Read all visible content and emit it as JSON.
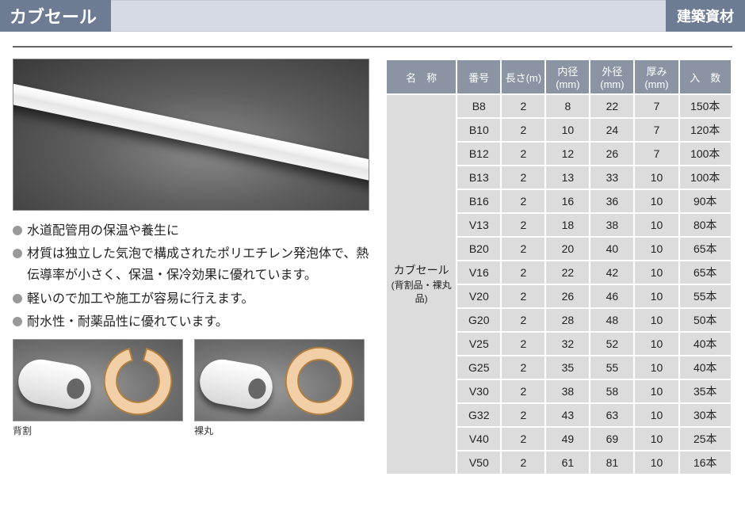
{
  "header": {
    "title": "カブセール",
    "category": "建築資材"
  },
  "bullets": [
    "水道配管用の保温や養生に",
    "材質は独立した気泡で構成されたポリエチレン発泡体で、熱伝導率が小さく、保温・保冷効果に優れています。",
    "軽いので加工や施工が容易に行えます。",
    "耐水性・耐薬品性に優れています。"
  ],
  "samples": [
    {
      "label": "背割",
      "split": true
    },
    {
      "label": "裸丸",
      "split": false
    }
  ],
  "ring_style": {
    "outer_r": 44,
    "inner_r": 28,
    "fill": "#f3cfa7",
    "stroke": "#b07e3e",
    "stroke_width": 2,
    "gap_deg": 30
  },
  "table": {
    "columns": [
      "名　称",
      "番号",
      "長さ(m)",
      "内径(mm)",
      "外径(mm)",
      "厚み(mm)",
      "入　数"
    ],
    "name_cell": {
      "line1": "カブセール",
      "line2": "(背割品・裸丸品)"
    },
    "rows": [
      {
        "no": "B8",
        "len": "2",
        "id": "8",
        "od": "22",
        "th": "7",
        "qty": "150本"
      },
      {
        "no": "B10",
        "len": "2",
        "id": "10",
        "od": "24",
        "th": "7",
        "qty": "120本"
      },
      {
        "no": "B12",
        "len": "2",
        "id": "12",
        "od": "26",
        "th": "7",
        "qty": "100本"
      },
      {
        "no": "B13",
        "len": "2",
        "id": "13",
        "od": "33",
        "th": "10",
        "qty": "100本"
      },
      {
        "no": "B16",
        "len": "2",
        "id": "16",
        "od": "36",
        "th": "10",
        "qty": "90本"
      },
      {
        "no": "V13",
        "len": "2",
        "id": "18",
        "od": "38",
        "th": "10",
        "qty": "80本"
      },
      {
        "no": "B20",
        "len": "2",
        "id": "20",
        "od": "40",
        "th": "10",
        "qty": "65本"
      },
      {
        "no": "V16",
        "len": "2",
        "id": "22",
        "od": "42",
        "th": "10",
        "qty": "65本"
      },
      {
        "no": "V20",
        "len": "2",
        "id": "26",
        "od": "46",
        "th": "10",
        "qty": "55本"
      },
      {
        "no": "G20",
        "len": "2",
        "id": "28",
        "od": "48",
        "th": "10",
        "qty": "50本"
      },
      {
        "no": "V25",
        "len": "2",
        "id": "32",
        "od": "52",
        "th": "10",
        "qty": "40本"
      },
      {
        "no": "G25",
        "len": "2",
        "id": "35",
        "od": "55",
        "th": "10",
        "qty": "40本"
      },
      {
        "no": "V30",
        "len": "2",
        "id": "38",
        "od": "58",
        "th": "10",
        "qty": "35本"
      },
      {
        "no": "G32",
        "len": "2",
        "id": "43",
        "od": "63",
        "th": "10",
        "qty": "30本"
      },
      {
        "no": "V40",
        "len": "2",
        "id": "49",
        "od": "69",
        "th": "10",
        "qty": "25本"
      },
      {
        "no": "V50",
        "len": "2",
        "id": "61",
        "od": "81",
        "th": "10",
        "qty": "16本"
      }
    ],
    "header_bg": "#8b94a3",
    "header_fg": "#ffffff",
    "cell_bg": "#dcdcdc",
    "cell_fg": "#222222",
    "border_color": "#ffffff"
  }
}
